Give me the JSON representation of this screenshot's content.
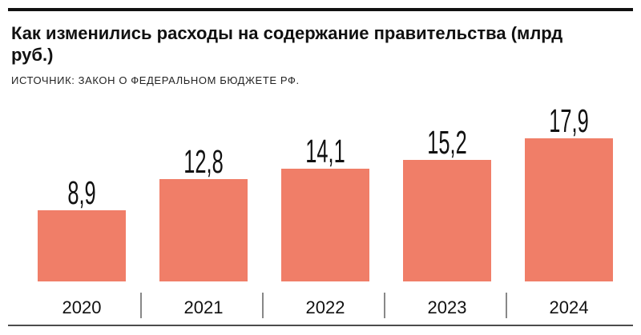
{
  "chart_data": {
    "type": "bar",
    "title": "Как изменились расходы на содержание правительства (млрд руб.)",
    "subtitle": "ИСТОЧНИК: ЗАКОН О ФЕДЕРАЛЬНОМ БЮДЖЕТЕ РФ.",
    "categories": [
      "2020",
      "2021",
      "2022",
      "2023",
      "2024"
    ],
    "values": [
      8.9,
      12.8,
      14.1,
      15.2,
      17.9
    ],
    "value_labels": [
      "8,9",
      "12,8",
      "14,1",
      "15,2",
      "17,9"
    ],
    "xlabel": "",
    "ylabel": "",
    "ylim": [
      0,
      17.9
    ],
    "grid": false,
    "bar_color": "#f07e68"
  }
}
